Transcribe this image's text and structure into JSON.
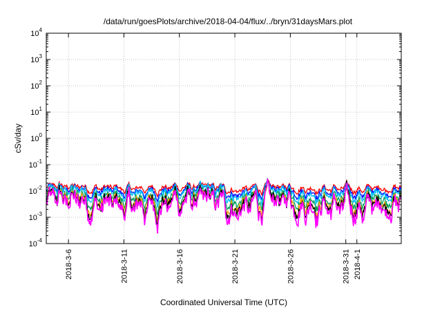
{
  "chart_data": {
    "type": "line",
    "title": "/data/run/goesPlots/archive/2018-04-04/flux/../bryn/31daysMars.plot",
    "xlabel": "Coordinated Universal Time (UTC)",
    "ylabel": "cSv/day",
    "yscale": "log",
    "ylim": [
      0.0001,
      10000
    ],
    "y_ticks": [
      {
        "base": "10",
        "exp": "-4"
      },
      {
        "base": "10",
        "exp": "-3"
      },
      {
        "base": "10",
        "exp": "-2"
      },
      {
        "base": "10",
        "exp": "-1"
      },
      {
        "base": "10",
        "exp": "0"
      },
      {
        "base": "10",
        "exp": "1"
      },
      {
        "base": "10",
        "exp": "2"
      },
      {
        "base": "10",
        "exp": "3"
      },
      {
        "base": "10",
        "exp": "4"
      }
    ],
    "x_ticks": [
      "2018-3-6",
      "2018-3-11",
      "2018-3-16",
      "2018-3-21",
      "2018-3-26",
      "2018-3-31",
      "2018-4-1"
    ],
    "xlim": [
      "2018-03-04",
      "2018-04-05"
    ],
    "grid": true,
    "series": [
      {
        "color": "#ff0000",
        "approx_level": 0.013
      },
      {
        "color": "#0000ff",
        "approx_level": 0.01
      },
      {
        "color": "#00bfff",
        "approx_level": 0.0085
      },
      {
        "color": "#00a060",
        "approx_level": 0.0055
      },
      {
        "color": "#ffa000",
        "approx_level": 0.004
      },
      {
        "color": "#000000",
        "approx_level": 0.0035
      },
      {
        "color": "#ff00ff",
        "approx_level": 0.0028
      }
    ]
  }
}
